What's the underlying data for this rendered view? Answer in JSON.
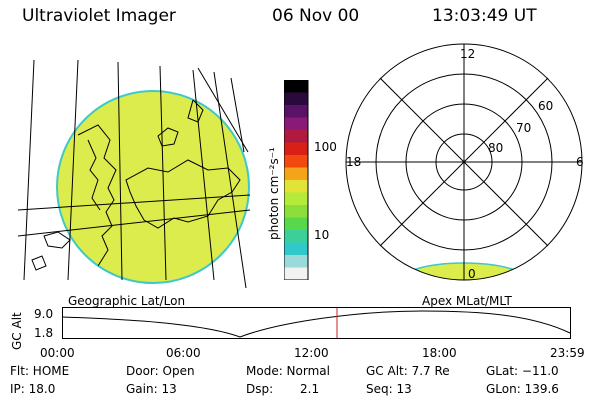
{
  "header": {
    "instrument": "Ultraviolet Imager",
    "date": "06 Nov 00",
    "time": "13:03:49 UT"
  },
  "colors": {
    "map_fill": "#dcec4c",
    "map_edge": "#3ec8c8",
    "ephemeris_marker": "#cc2222"
  },
  "colorbar": {
    "unit_label": "photon cm⁻²s⁻¹",
    "ticks": [
      "100",
      "10"
    ],
    "colors_top_to_bottom": [
      "#000000",
      "#2a0a3a",
      "#5a1268",
      "#8a1a78",
      "#b01a40",
      "#d82018",
      "#f04a10",
      "#f4a418",
      "#e2e238",
      "#b4ea3a",
      "#8cdf3a",
      "#58d84a",
      "#3ccf9a",
      "#30c8c8",
      "#9adada",
      "#f2f2f2"
    ]
  },
  "polar": {
    "mlt_labels": [
      "12",
      "18",
      "6",
      "0"
    ],
    "lat_labels": [
      "60",
      "70",
      "80"
    ]
  },
  "map_label": "Geographic Lat/Lon",
  "polar_label": "Apex MLat/MLT",
  "timeline": {
    "ylabel": "GC Alt",
    "y_ticks": [
      "9.0",
      "1.8"
    ],
    "x_ticks": [
      "00:00",
      "06:00",
      "12:00",
      "18:00",
      "23:59"
    ]
  },
  "info": {
    "flt": "Flt: HOME",
    "ip": "IP: 18.0",
    "door": "Door: Open",
    "gain": "Gain: 13",
    "mode": "Mode: Normal",
    "dsp_label": "Dsp:",
    "dsp_value": "2.1",
    "gcalt": "GC Alt: 7.7 Re",
    "seq": "Seq: 13",
    "glat": "GLat: −11.0",
    "glon": "GLon: 139.6"
  }
}
